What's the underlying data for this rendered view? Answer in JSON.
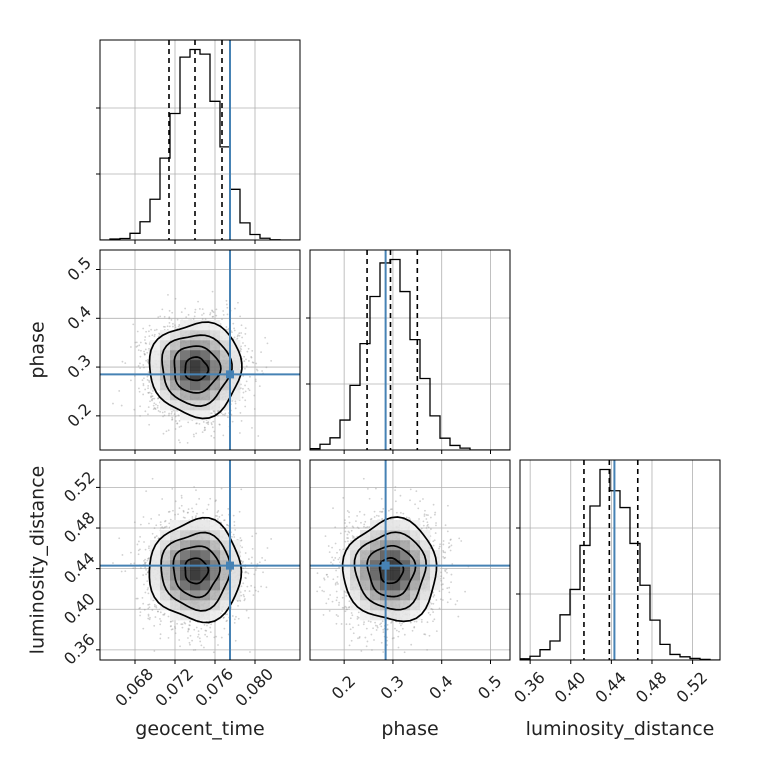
{
  "chart_data": {
    "type": "corner",
    "parameters": [
      "geocent_time",
      "phase",
      "luminosity_distance"
    ],
    "axis_labels": {
      "x": [
        "geocent_time",
        "phase",
        "luminosity_distance"
      ],
      "y": [
        "phase",
        "luminosity_distance"
      ]
    },
    "ranges": [
      [
        0.0645,
        0.0845
      ],
      [
        0.13,
        0.54
      ],
      [
        0.35,
        0.547
      ]
    ],
    "ticks": [
      {
        "values": [
          0.068,
          0.072,
          0.076,
          0.08
        ],
        "labels": [
          "0.068",
          "0.072",
          "0.076",
          "0.080"
        ]
      },
      {
        "values": [
          0.2,
          0.3,
          0.4,
          0.5
        ],
        "labels": [
          "0.2",
          "0.3",
          "0.4",
          "0.5"
        ]
      },
      {
        "values": [
          0.36,
          0.4,
          0.44,
          0.48,
          0.52
        ],
        "labels": [
          "0.36",
          "0.40",
          "0.44",
          "0.48",
          "0.52"
        ]
      }
    ],
    "truths": [
      0.0775,
      0.285,
      0.443
    ],
    "quantiles": [
      {
        "q16": 0.0714,
        "q50": 0.074,
        "q84": 0.0767
      },
      {
        "q16": 0.247,
        "q50": 0.295,
        "q84": 0.35
      },
      {
        "q16": 0.413,
        "q50": 0.438,
        "q84": 0.466
      }
    ],
    "posterior": {
      "means": [
        0.0741,
        0.296,
        0.438
      ],
      "sigmas": [
        0.0023,
        0.048,
        0.025
      ],
      "samples": 6000
    },
    "hist_bins": 20,
    "grid": true,
    "truth_color": "#4682b4",
    "line_color": "#000000"
  }
}
